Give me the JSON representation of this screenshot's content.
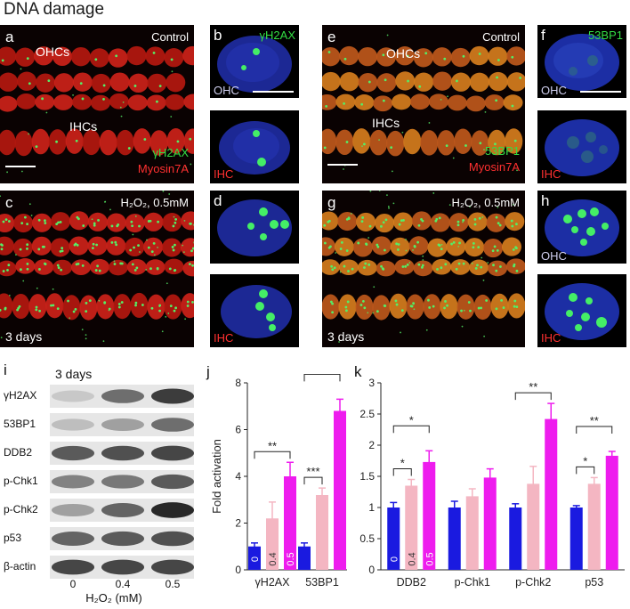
{
  "figure_title": "DNA damage",
  "panels": {
    "a": {
      "letter": "a",
      "condition": "Control",
      "top_label": "OHCs",
      "bottom_label": "IHCs",
      "marker1": "γH2AX",
      "marker2": "Myosin7A"
    },
    "b": {
      "letter": "b",
      "marker": "γH2AX",
      "cell": "OHC"
    },
    "b2": {
      "cell": "IHC"
    },
    "c": {
      "letter": "c",
      "condition": "H₂O₂, 0.5mM",
      "time": "3 days"
    },
    "d": {
      "letter": "d",
      "cell": ""
    },
    "d2": {
      "cell": "IHC"
    },
    "e": {
      "letter": "e",
      "condition": "Control",
      "top_label": "OHCs",
      "bottom_label": "IHCs",
      "marker1": "53BP1",
      "marker2": "Myosin7A"
    },
    "f": {
      "letter": "f",
      "marker": "53BP1",
      "cell": "OHC"
    },
    "f2": {
      "cell": "IHC"
    },
    "g": {
      "letter": "g",
      "condition": "H₂O₂, 0.5mM",
      "time": "3 days"
    },
    "h": {
      "letter": "h",
      "cell": "OHC"
    },
    "h2": {
      "cell": "IHC"
    }
  },
  "colors": {
    "blue": "#1a1ae0",
    "pink": "#f4b6c2",
    "magenta": "#ee1cee",
    "myosin_red": "#c81e14",
    "dapi_blue": "#1e2a9a",
    "foci_green": "#44ee66"
  },
  "western_blot": {
    "letter": "i",
    "time": "3 days",
    "rows": [
      "γH2AX",
      "53BP1",
      "DDB2",
      "p-Chk1",
      "p-Chk2",
      "p53",
      "β-actin"
    ],
    "lane_labels": [
      "0",
      "0.4",
      "0.5"
    ],
    "xlabel": "H₂O₂ (mM)",
    "band_intensity": [
      [
        0.15,
        0.6,
        0.85
      ],
      [
        0.2,
        0.35,
        0.6
      ],
      [
        0.7,
        0.75,
        0.8
      ],
      [
        0.5,
        0.55,
        0.7
      ],
      [
        0.35,
        0.65,
        0.95
      ],
      [
        0.65,
        0.7,
        0.75
      ],
      [
        0.8,
        0.8,
        0.8
      ]
    ]
  },
  "chart_data": [
    {
      "type": "bar",
      "letter": "j",
      "categories": [
        "γH2AX",
        "53BP1"
      ],
      "series": [
        {
          "values": [
            1.0,
            1.0
          ],
          "errors": [
            0.15,
            0.15
          ]
        },
        {
          "values": [
            2.2,
            3.2
          ],
          "errors": [
            0.7,
            0.3
          ]
        },
        {
          "values": [
            4.0,
            6.8
          ],
          "errors": [
            0.6,
            0.5
          ]
        }
      ],
      "bar_labels": [
        "0",
        "0.4",
        "0.5"
      ],
      "ylabel": "Fold activation",
      "ylim": [
        0,
        8
      ],
      "yticks": [
        "0",
        "2",
        "4",
        "6",
        "8"
      ],
      "significance": [
        {
          "group": 0,
          "from": 0,
          "to": 2,
          "label": "**"
        },
        {
          "group": 1,
          "from": 0,
          "to": 1,
          "label": "***"
        },
        {
          "group": 1,
          "from": 0,
          "to": 2,
          "label": "***"
        }
      ]
    },
    {
      "type": "bar",
      "letter": "k",
      "categories": [
        "DDB2",
        "p-Chk1",
        "p-Chk2",
        "p53"
      ],
      "series": [
        {
          "values": [
            1.0,
            1.0,
            1.0,
            1.0
          ],
          "errors": [
            0.08,
            0.1,
            0.06,
            0.03
          ]
        },
        {
          "values": [
            1.35,
            1.18,
            1.38,
            1.38
          ],
          "errors": [
            0.1,
            0.12,
            0.28,
            0.1
          ]
        },
        {
          "values": [
            1.73,
            1.48,
            2.42,
            1.83
          ],
          "errors": [
            0.18,
            0.14,
            0.25,
            0.07
          ]
        }
      ],
      "bar_labels": [
        "0",
        "0.4",
        "0.5"
      ],
      "ylim": [
        0,
        3
      ],
      "yticks": [
        "0",
        "0.5",
        "1",
        "1.5",
        "2",
        "2.5",
        "3"
      ],
      "significance": [
        {
          "group": 0,
          "from": 0,
          "to": 1,
          "label": "*"
        },
        {
          "group": 0,
          "from": 0,
          "to": 2,
          "label": "*"
        },
        {
          "group": 2,
          "from": 0,
          "to": 2,
          "label": "**"
        },
        {
          "group": 3,
          "from": 0,
          "to": 1,
          "label": "*"
        },
        {
          "group": 3,
          "from": 0,
          "to": 2,
          "label": "**"
        }
      ]
    }
  ]
}
